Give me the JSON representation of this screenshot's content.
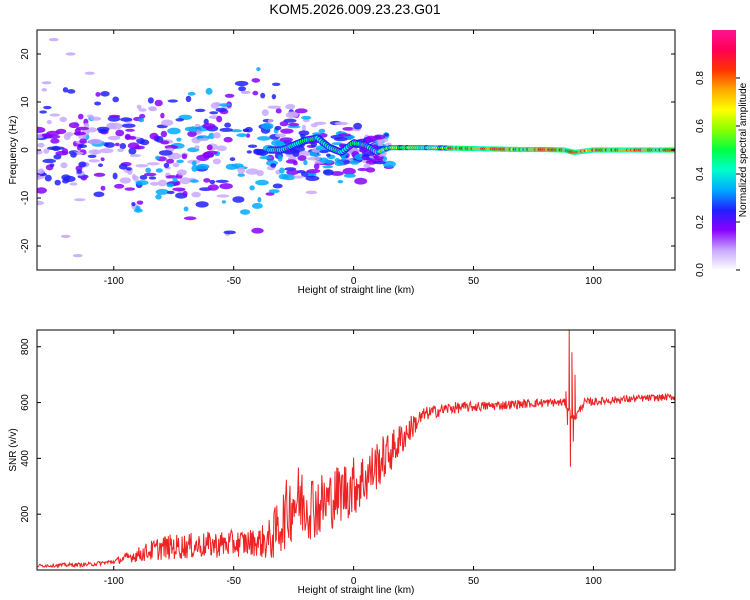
{
  "title": "KOM5.2026.009.23.23.G01",
  "chart_data": [
    {
      "type": "heatmap",
      "name": "spectrogram",
      "xlabel": "Height of straight line (km)",
      "ylabel": "Frequency (Hz)",
      "xlim": [
        -132,
        134
      ],
      "ylim": [
        -25,
        25
      ],
      "xticks": [
        -100,
        -50,
        0,
        50,
        100
      ],
      "xtick_labels": [
        "-100",
        "-50",
        "0",
        "50",
        "100"
      ],
      "yticks": [
        -20,
        -10,
        0,
        10,
        20
      ],
      "ytick_labels": [
        "-20",
        "-10",
        "0",
        "10",
        "20"
      ],
      "ridge": {
        "description_points_x": [
          -30,
          -25,
          -20,
          -15,
          -10,
          -5,
          0,
          5,
          10,
          15,
          20,
          30,
          40,
          50,
          60,
          70,
          80,
          88,
          92,
          100,
          110,
          120,
          134
        ],
        "frequency_hz": [
          0.0,
          1.0,
          2.0,
          2.5,
          0.5,
          -0.5,
          1.5,
          1.0,
          -0.5,
          0.5,
          0.5,
          0.5,
          0.4,
          0.3,
          0.2,
          0.1,
          0.1,
          0.0,
          -0.5,
          0.0,
          0.0,
          0.0,
          0.0
        ]
      },
      "colorbar": {
        "label": "Normalized spectral amplitude",
        "range": [
          0,
          1
        ],
        "ticks": [
          0.0,
          0.2,
          0.4,
          0.6,
          0.8
        ],
        "tick_labels": [
          "0.0",
          "0.2",
          "0.4",
          "0.6",
          "0.8"
        ],
        "colormap": [
          "#ffffff",
          "#c8a8ff",
          "#8800ff",
          "#2020ff",
          "#00aaff",
          "#00ffcc",
          "#00ff44",
          "#88ff00",
          "#ffff00",
          "#ffaa00",
          "#ff3300",
          "#ff0055",
          "#ff1493"
        ]
      }
    },
    {
      "type": "line",
      "name": "snr",
      "xlabel": "Height of straight line (km)",
      "ylabel": "SNR (v/v)",
      "xlim": [
        -132,
        134
      ],
      "ylim": [
        0,
        860
      ],
      "xticks": [
        -100,
        -50,
        0,
        50,
        100
      ],
      "xtick_labels": [
        "-100",
        "-50",
        "0",
        "50",
        "100"
      ],
      "yticks": [
        200,
        400,
        600,
        800
      ],
      "ytick_labels": [
        "200",
        "400",
        "600",
        "800"
      ],
      "color": "#ee2222",
      "trend_x": [
        -132,
        -110,
        -100,
        -90,
        -80,
        -60,
        -40,
        -35,
        -30,
        -25,
        -20,
        -15,
        -10,
        -5,
        0,
        5,
        10,
        15,
        20,
        25,
        30,
        40,
        50,
        60,
        70,
        80,
        88,
        92,
        96,
        110,
        120,
        134
      ],
      "trend_y": [
        15,
        20,
        30,
        55,
        80,
        90,
        100,
        105,
        170,
        250,
        240,
        230,
        250,
        280,
        300,
        330,
        380,
        420,
        470,
        520,
        560,
        580,
        585,
        590,
        595,
        600,
        600,
        540,
        600,
        610,
        615,
        620
      ],
      "noise_x": [
        -132,
        -100,
        -80,
        -40,
        -30,
        -25,
        -20,
        -10,
        0,
        10,
        20,
        30,
        50,
        88,
        92,
        134
      ],
      "noise_amplitude": [
        6,
        8,
        45,
        50,
        110,
        140,
        130,
        110,
        110,
        90,
        60,
        25,
        18,
        15,
        15,
        12
      ],
      "spikes": [
        {
          "x": 88.5,
          "y": 640
        },
        {
          "x": 89.2,
          "y": 520
        },
        {
          "x": 89.9,
          "y": 860
        },
        {
          "x": 90.4,
          "y": 370
        },
        {
          "x": 91.0,
          "y": 780
        },
        {
          "x": 91.6,
          "y": 460
        },
        {
          "x": 92.3,
          "y": 700
        },
        {
          "x": 93.0,
          "y": 560
        }
      ]
    }
  ]
}
